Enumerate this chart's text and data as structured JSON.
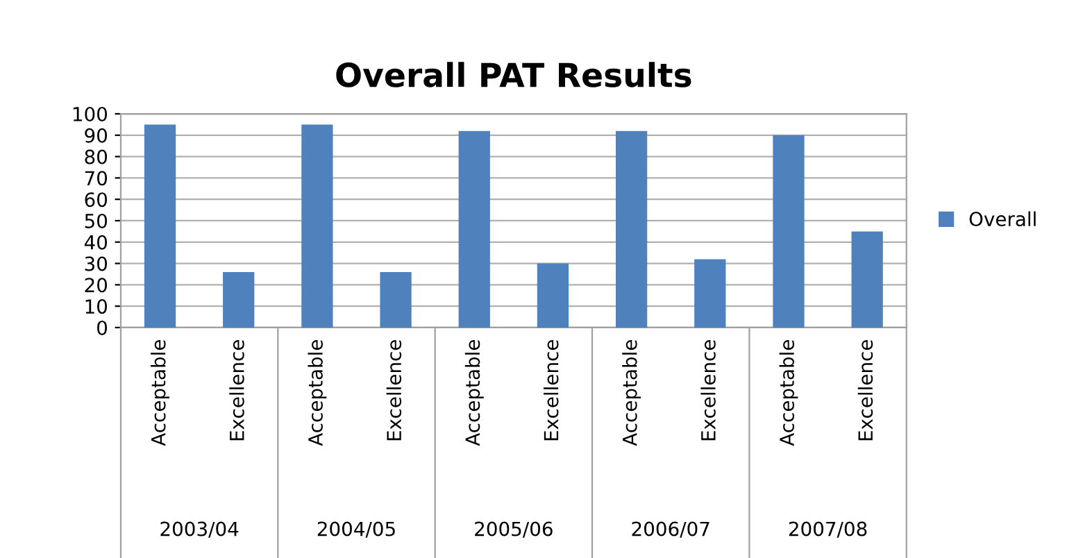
{
  "chart_data": {
    "type": "bar",
    "title": "Overall PAT Results",
    "categories": [
      "Acceptable",
      "Excellence",
      "Acceptable",
      "Excellence",
      "Acceptable",
      "Excellence",
      "Acceptable",
      "Excellence",
      "Acceptable",
      "Excellence"
    ],
    "series": [
      {
        "name": "Overall",
        "color": "#4f81bd",
        "values": [
          95,
          26,
          95,
          26,
          92,
          30,
          92,
          32,
          90,
          45
        ]
      }
    ],
    "annotations": [
      "2003/04",
      "2004/05",
      "2005/06",
      "2006/07",
      "2007/08"
    ],
    "ylim": [
      0,
      100
    ],
    "yticks": [
      0,
      10,
      20,
      30,
      40,
      50,
      60,
      70,
      80,
      90,
      100
    ],
    "grid": "y",
    "legend": "right"
  }
}
